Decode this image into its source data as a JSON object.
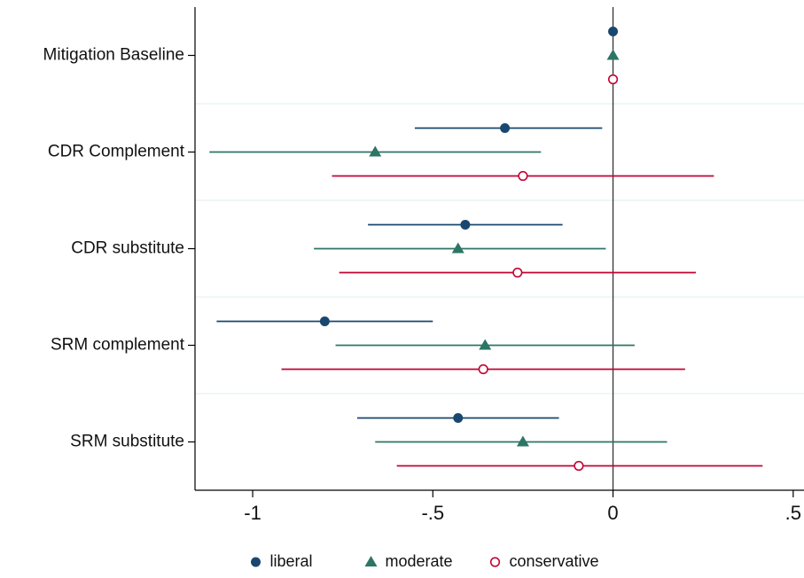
{
  "chart_data": {
    "type": "coefplot",
    "categories": [
      "Mitigation Baseline",
      "CDR Complement",
      "CDR substitute",
      "SRM complement",
      "SRM substitute"
    ],
    "series": [
      {
        "name": "liberal",
        "color": "#1a476f",
        "marker": "circle",
        "values": [
          0,
          -0.3,
          -0.41,
          -0.8,
          -0.43
        ],
        "ci_low": [
          null,
          -0.55,
          -0.68,
          -1.1,
          -0.71
        ],
        "ci_high": [
          null,
          -0.03,
          -0.14,
          -0.5,
          -0.15
        ]
      },
      {
        "name": "moderate",
        "color": "#2d7566",
        "marker": "triangle",
        "values": [
          0,
          -0.66,
          -0.43,
          -0.355,
          -0.25
        ],
        "ci_low": [
          null,
          -1.12,
          -0.83,
          -0.77,
          -0.66
        ],
        "ci_high": [
          null,
          -0.2,
          -0.02,
          0.06,
          0.15
        ]
      },
      {
        "name": "conservative",
        "color": "#c10534",
        "marker": "circle-open",
        "values": [
          0,
          -0.25,
          -0.265,
          -0.36,
          -0.095
        ],
        "ci_low": [
          null,
          -0.78,
          -0.76,
          -0.92,
          -0.6
        ],
        "ci_high": [
          null,
          0.28,
          0.23,
          0.2,
          0.415
        ]
      }
    ],
    "xlim": [
      -1.16,
      0.53
    ],
    "xticks": [
      -1,
      {
        "value": -0.5,
        "label": "-.5"
      },
      0,
      {
        "value": 0.5,
        "label": ".5"
      }
    ],
    "reference_line": 0,
    "legend": "bottom"
  }
}
